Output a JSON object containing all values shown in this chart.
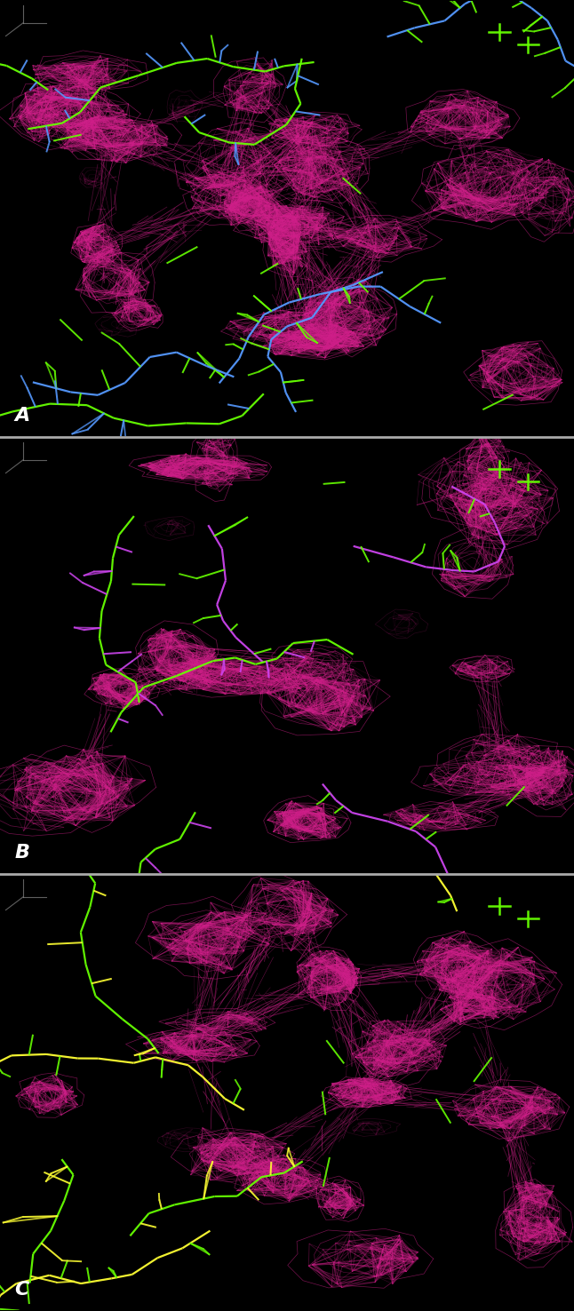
{
  "panels": [
    {
      "label": "A",
      "bg_color": "#000000",
      "mesh_color": "#d0208a",
      "mesh_alpha": 0.55,
      "structure_colors": [
        "#5599ff",
        "#66ff00"
      ],
      "label_color": "white",
      "label_fontsize": 16,
      "label_fontstyle": "italic",
      "label_fontweight": "bold",
      "seed": 1001
    },
    {
      "label": "B",
      "bg_color": "#000000",
      "mesh_color": "#d0208a",
      "mesh_alpha": 0.55,
      "structure_colors": [
        "#cc44ee",
        "#66ff00"
      ],
      "label_color": "white",
      "label_fontsize": 16,
      "label_fontstyle": "italic",
      "label_fontweight": "bold",
      "seed": 2002
    },
    {
      "label": "C",
      "bg_color": "#000000",
      "mesh_color": "#d0208a",
      "mesh_alpha": 0.55,
      "structure_colors": [
        "#ffff33",
        "#66ff00"
      ],
      "label_color": "white",
      "label_fontsize": 16,
      "label_fontstyle": "italic",
      "label_fontweight": "bold",
      "seed": 3003
    }
  ],
  "fig_width": 6.46,
  "fig_height": 14.76,
  "dpi": 100,
  "separator_color": "#aaaaaa",
  "separator_linewidth": 2.0
}
